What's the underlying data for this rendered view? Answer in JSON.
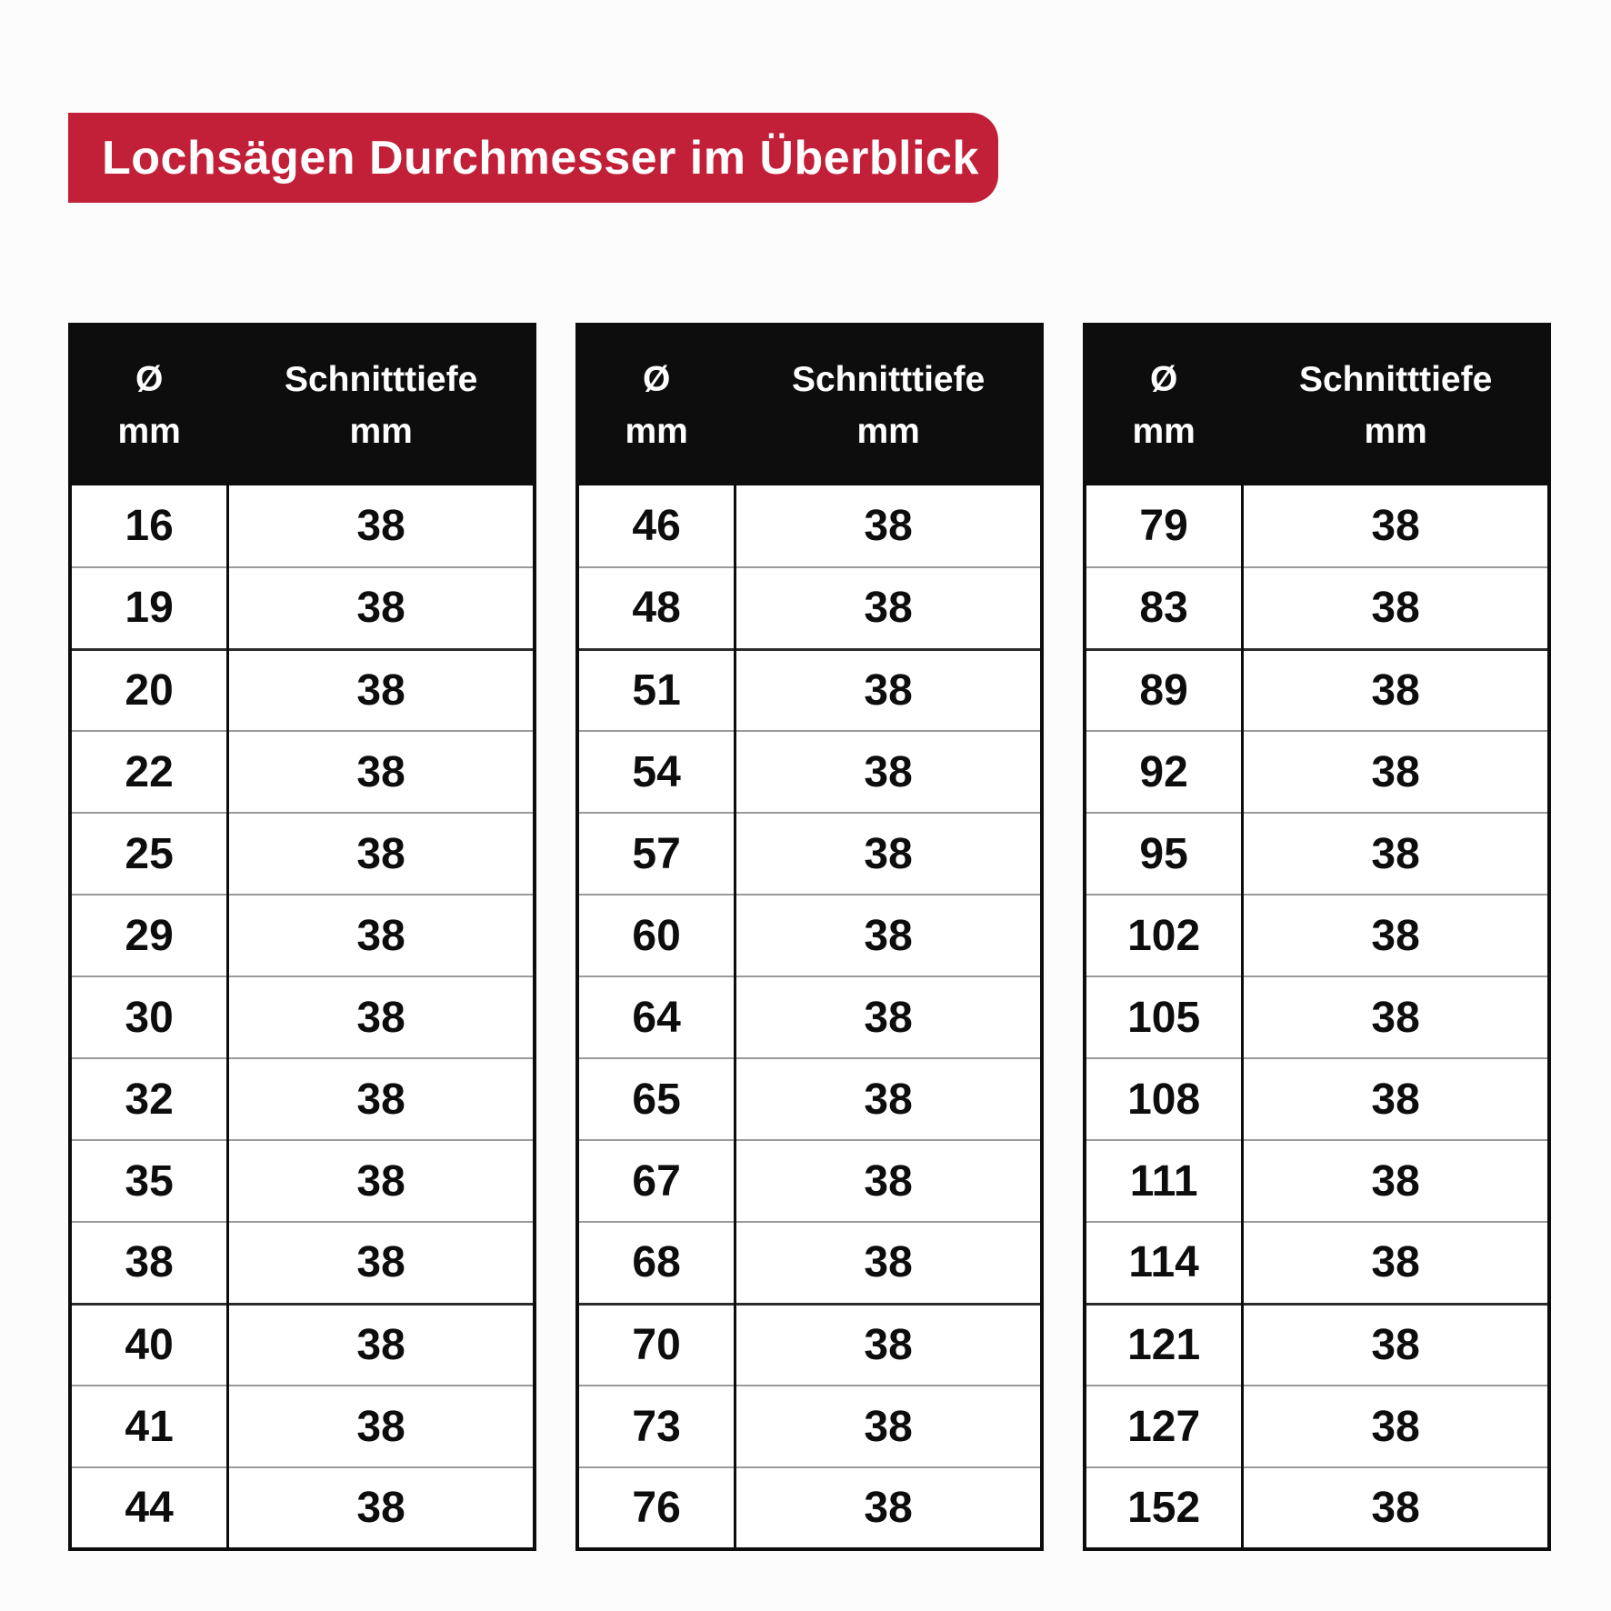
{
  "page": {
    "background": "#fcfcfc"
  },
  "banner": {
    "label": "Lochsägen Durchmesser im Überblick",
    "bg": "#c22038",
    "text_color": "#ffffff"
  },
  "columns": {
    "diameter": [
      "Ø",
      "mm"
    ],
    "depth": [
      "Schnitttiefe",
      "mm"
    ]
  },
  "tables": [
    {
      "rows": [
        [
          "16",
          "38"
        ],
        [
          "19",
          "38"
        ],
        [
          "20",
          "38"
        ],
        [
          "22",
          "38"
        ],
        [
          "25",
          "38"
        ],
        [
          "29",
          "38"
        ],
        [
          "30",
          "38"
        ],
        [
          "32",
          "38"
        ],
        [
          "35",
          "38"
        ],
        [
          "38",
          "38"
        ],
        [
          "40",
          "38"
        ],
        [
          "41",
          "38"
        ],
        [
          "44",
          "38"
        ]
      ]
    },
    {
      "rows": [
        [
          "46",
          "38"
        ],
        [
          "48",
          "38"
        ],
        [
          "51",
          "38"
        ],
        [
          "54",
          "38"
        ],
        [
          "57",
          "38"
        ],
        [
          "60",
          "38"
        ],
        [
          "64",
          "38"
        ],
        [
          "65",
          "38"
        ],
        [
          "67",
          "38"
        ],
        [
          "68",
          "38"
        ],
        [
          "70",
          "38"
        ],
        [
          "73",
          "38"
        ],
        [
          "76",
          "38"
        ]
      ]
    },
    {
      "rows": [
        [
          "79",
          "38"
        ],
        [
          "83",
          "38"
        ],
        [
          "89",
          "38"
        ],
        [
          "92",
          "38"
        ],
        [
          "95",
          "38"
        ],
        [
          "102",
          "38"
        ],
        [
          "105",
          "38"
        ],
        [
          "108",
          "38"
        ],
        [
          "111",
          "38"
        ],
        [
          "114",
          "38"
        ],
        [
          "121",
          "38"
        ],
        [
          "127",
          "38"
        ],
        [
          "152",
          "38"
        ]
      ]
    }
  ]
}
